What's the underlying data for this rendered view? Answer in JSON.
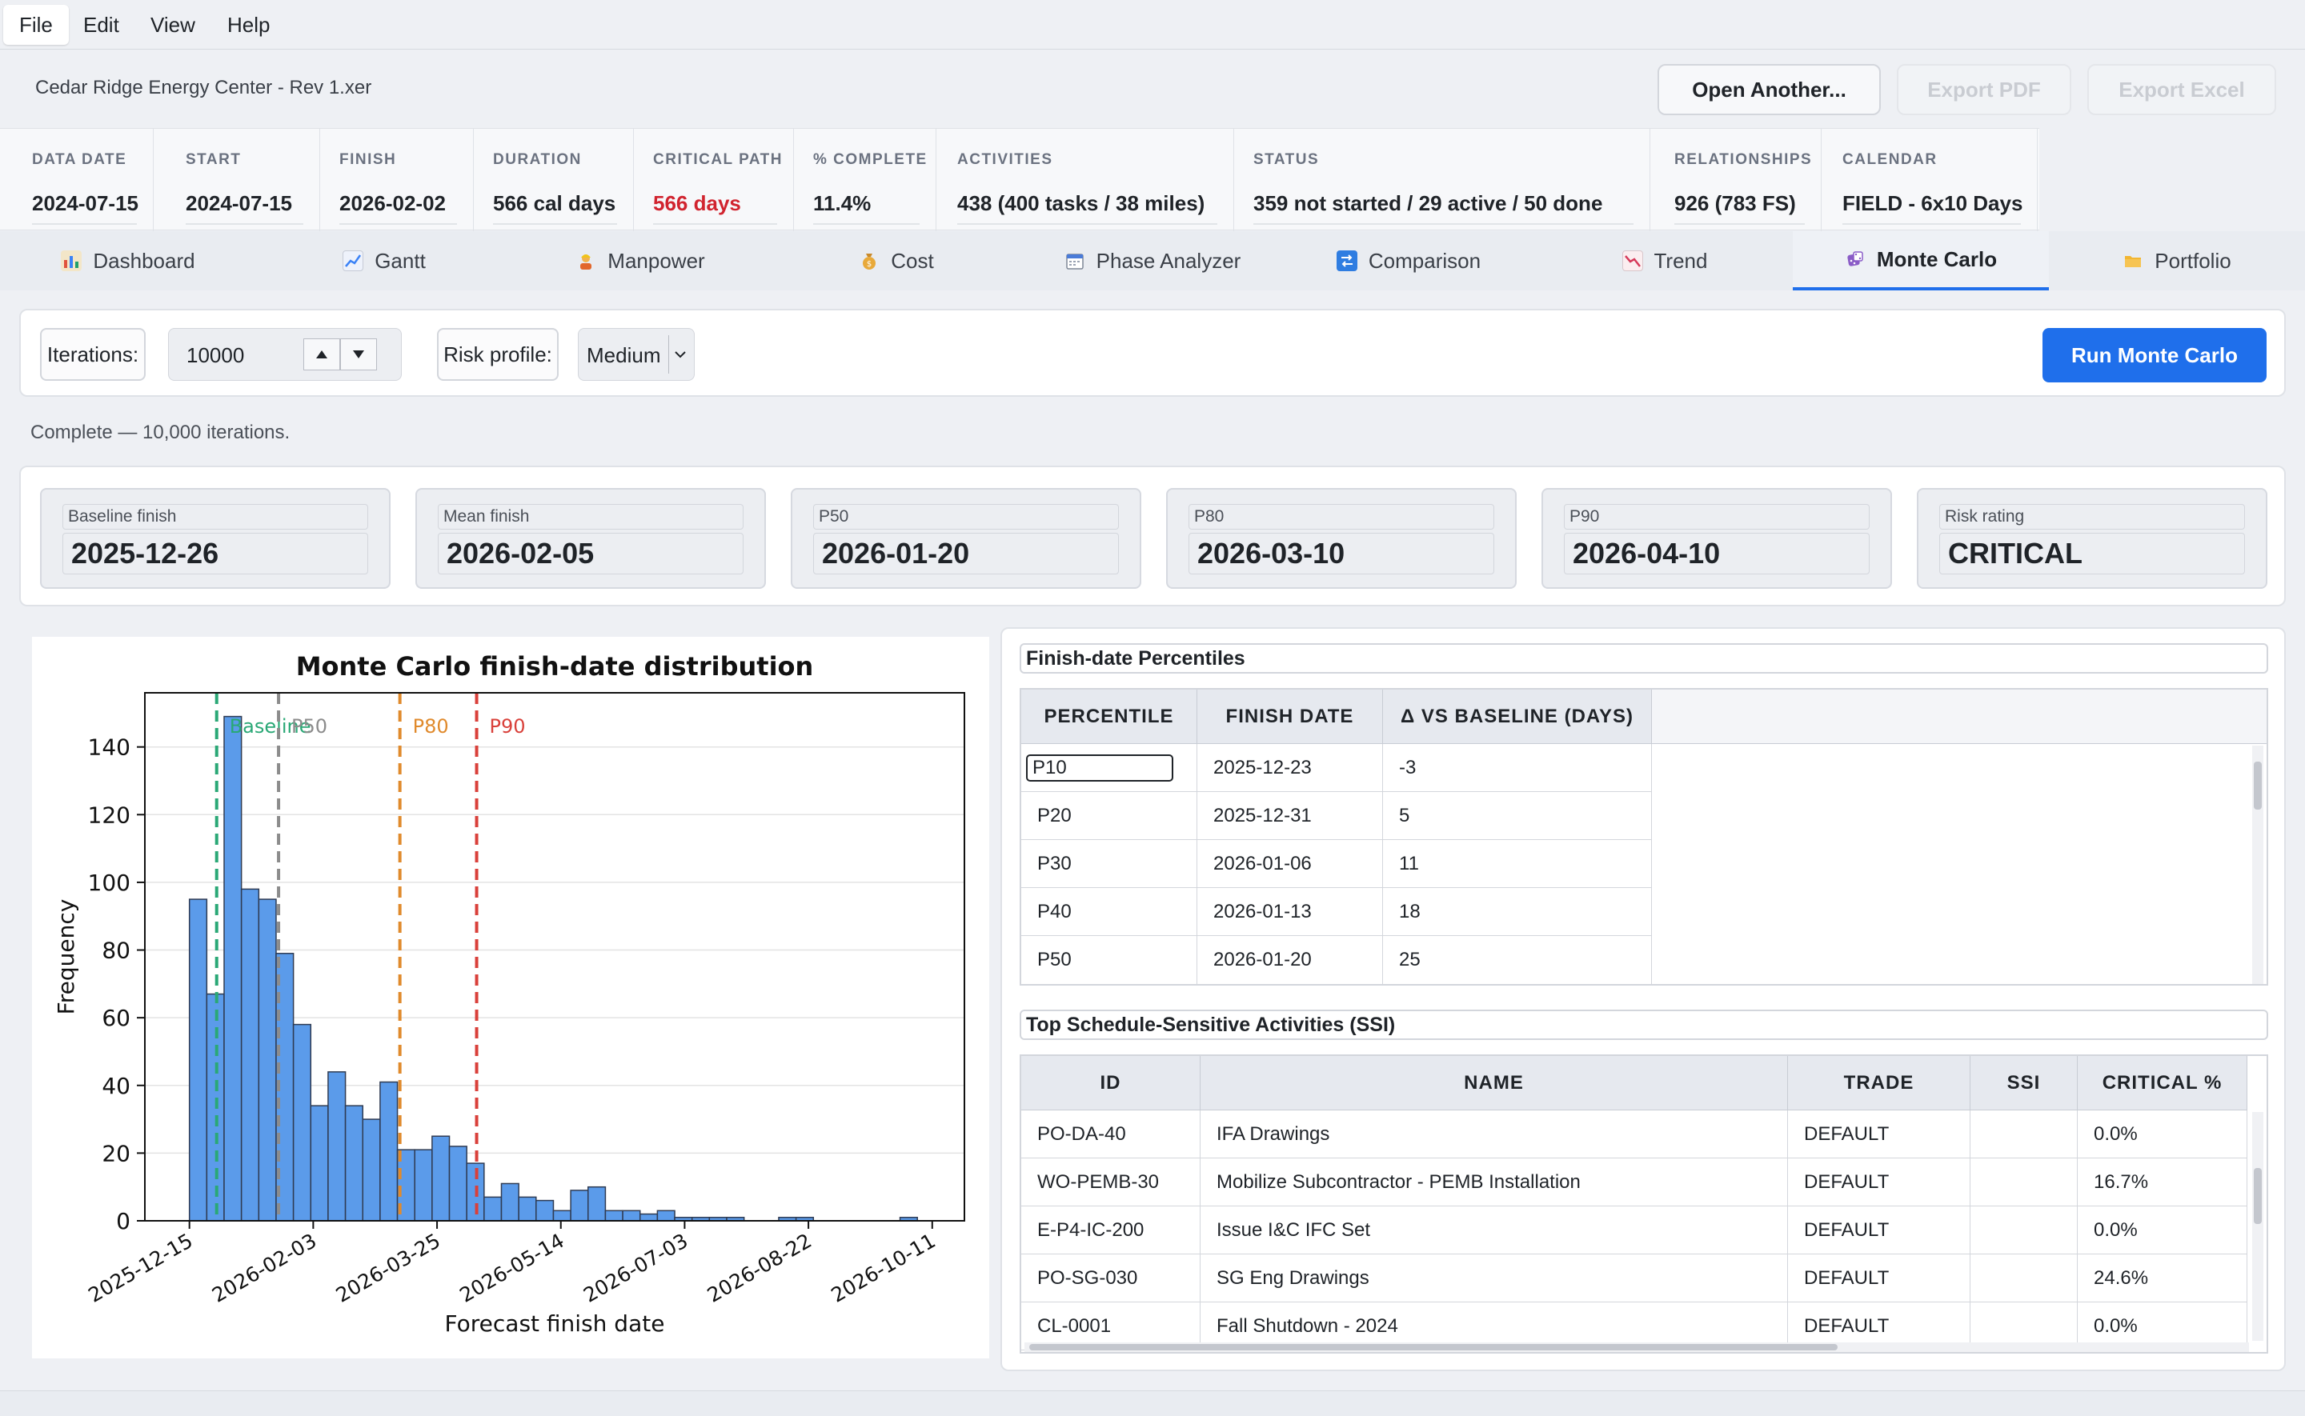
{
  "menu": [
    "File",
    "Edit",
    "View",
    "Help"
  ],
  "file": {
    "name": "Cedar Ridge Energy Center - Rev 1.xer",
    "open_label": "Open Another...",
    "export_pdf": "Export PDF",
    "export_excel": "Export Excel"
  },
  "summary": [
    {
      "label": "DATA DATE",
      "value": "2024-07-15"
    },
    {
      "label": "START",
      "value": "2024-07-15"
    },
    {
      "label": "FINISH",
      "value": "2026-02-02"
    },
    {
      "label": "DURATION",
      "value": "566 cal days"
    },
    {
      "label": "CRITICAL PATH",
      "value": "566 days"
    },
    {
      "label": "% COMPLETE",
      "value": "11.4%"
    },
    {
      "label": "ACTIVITIES",
      "value": "438  (400 tasks / 38 miles)"
    },
    {
      "label": "STATUS",
      "value": "359 not started  /  29 active  /  50 done"
    },
    {
      "label": "RELATIONSHIPS",
      "value": "926  (783 FS)"
    },
    {
      "label": "CALENDAR",
      "value": "FIELD - 6x10 Days"
    }
  ],
  "tabs": [
    {
      "label": "Dashboard",
      "icon": "bar-chart-icon"
    },
    {
      "label": "Gantt",
      "icon": "line-chart-icon"
    },
    {
      "label": "Manpower",
      "icon": "worker-icon"
    },
    {
      "label": "Cost",
      "icon": "money-bag-icon"
    },
    {
      "label": "Phase Analyzer",
      "icon": "calendar-icon"
    },
    {
      "label": "Comparison",
      "icon": "compare-icon"
    },
    {
      "label": "Trend",
      "icon": "trend-down-icon"
    },
    {
      "label": "Monte Carlo",
      "icon": "dice-icon"
    },
    {
      "label": "Portfolio",
      "icon": "folder-icon"
    }
  ],
  "active_tab": "Monte Carlo",
  "controls": {
    "iterations_label": "Iterations:",
    "iterations_value": "10000",
    "risk_label": "Risk profile:",
    "risk_value": "Medium",
    "run_label": "Run Monte Carlo"
  },
  "status_text": "Complete — 10,000 iterations.",
  "cards": [
    {
      "label": "Baseline finish",
      "value": "2025-12-26"
    },
    {
      "label": "Mean finish",
      "value": "2026-02-05"
    },
    {
      "label": "P50",
      "value": "2026-01-20"
    },
    {
      "label": "P80",
      "value": "2026-03-10"
    },
    {
      "label": "P90",
      "value": "2026-04-10"
    },
    {
      "label": "Risk rating",
      "value": "CRITICAL"
    }
  ],
  "chart_data": {
    "type": "bar",
    "title": "Monte Carlo finish-date distribution",
    "xlabel": "Forecast finish date",
    "ylabel": "Frequency",
    "x_ticks": [
      "2025-12-15",
      "2026-02-03",
      "2026-03-25",
      "2026-05-14",
      "2026-07-03",
      "2026-08-22",
      "2026-10-11"
    ],
    "y_ticks": [
      0,
      20,
      40,
      60,
      80,
      100,
      120,
      140
    ],
    "ylim": [
      0,
      156
    ],
    "xlim": [
      "2025-11-27",
      "2026-10-24"
    ],
    "bin_start": "2025-12-15",
    "bin_width_days": 7,
    "values": [
      95,
      67,
      149,
      98,
      95,
      79,
      58,
      34,
      44,
      34,
      30,
      41,
      21,
      21,
      25,
      22,
      17,
      7,
      11,
      7,
      6,
      3,
      9,
      10,
      3,
      3,
      2,
      3,
      1,
      1,
      1,
      1,
      0,
      0,
      1,
      1,
      0,
      0,
      0,
      0,
      0,
      1
    ],
    "bar_color": "#5b9bea",
    "vlines": [
      {
        "label": "Baseline",
        "date": "2025-12-26",
        "color": "#2aa876"
      },
      {
        "label": "P50",
        "date": "2026-01-20",
        "color": "#8c8c8c"
      },
      {
        "label": "P80",
        "date": "2026-03-10",
        "color": "#e08a2c"
      },
      {
        "label": "P90",
        "date": "2026-04-10",
        "color": "#d9403a"
      }
    ],
    "grid": true
  },
  "percentiles": {
    "title": "Finish-date Percentiles",
    "headers": [
      "PERCENTILE",
      "FINISH DATE",
      "Δ VS BASELINE (DAYS)"
    ],
    "rows": [
      [
        "P10",
        "2025-12-23",
        "-3"
      ],
      [
        "P20",
        "2025-12-31",
        "5"
      ],
      [
        "P30",
        "2026-01-06",
        "11"
      ],
      [
        "P40",
        "2026-01-13",
        "18"
      ],
      [
        "P50",
        "2026-01-20",
        "25"
      ]
    ]
  },
  "ssi": {
    "title": "Top Schedule-Sensitive Activities (SSI)",
    "headers": [
      "ID",
      "NAME",
      "TRADE",
      "SSI",
      "CRITICAL %"
    ],
    "rows": [
      [
        "PO-DA-40",
        "IFA Drawings",
        "DEFAULT",
        "",
        "0.0%"
      ],
      [
        "WO-PEMB-30",
        "Mobilize Subcontractor  - PEMB Installation",
        "DEFAULT",
        "",
        "16.7%"
      ],
      [
        "E-P4-IC-200",
        "Issue I&C  IFC Set",
        "DEFAULT",
        "",
        "0.0%"
      ],
      [
        "PO-SG-030",
        "SG Eng Drawings",
        "DEFAULT",
        "",
        "24.6%"
      ],
      [
        "CL-0001",
        "Fall Shutdown - 2024",
        "DEFAULT",
        "",
        "0.0%"
      ]
    ]
  }
}
